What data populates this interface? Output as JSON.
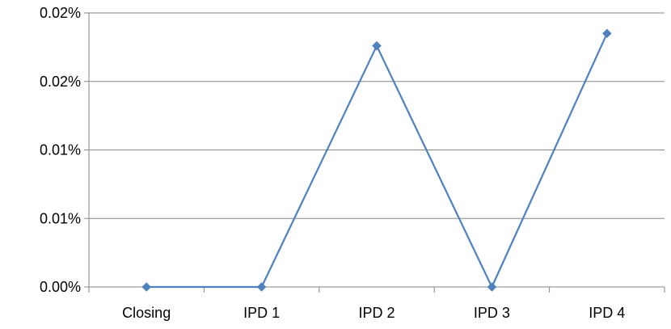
{
  "chart_data": {
    "type": "line",
    "title": "",
    "xlabel": "",
    "ylabel": "",
    "categories": [
      "Closing",
      "IPD 1",
      "IPD 2",
      "IPD 3",
      "IPD 4"
    ],
    "series": [
      {
        "values": [
          0.0,
          0.0,
          0.0176,
          0.0,
          0.0185
        ]
      }
    ],
    "y_unit": "percent",
    "ylim": [
      0,
      0.02
    ],
    "y_ticks": [
      0,
      0.005,
      0.01,
      0.015,
      0.02
    ],
    "y_tick_labels": [
      "0.00%",
      "0.01%",
      "0.01%",
      "0.02%",
      "0.02%"
    ],
    "grid": {
      "horizontal": true,
      "vertical": false
    },
    "legend": "none",
    "colors": {
      "series": "#4f81bd",
      "grid": "#868686",
      "axis": "#868686"
    },
    "marker": "diamond"
  }
}
